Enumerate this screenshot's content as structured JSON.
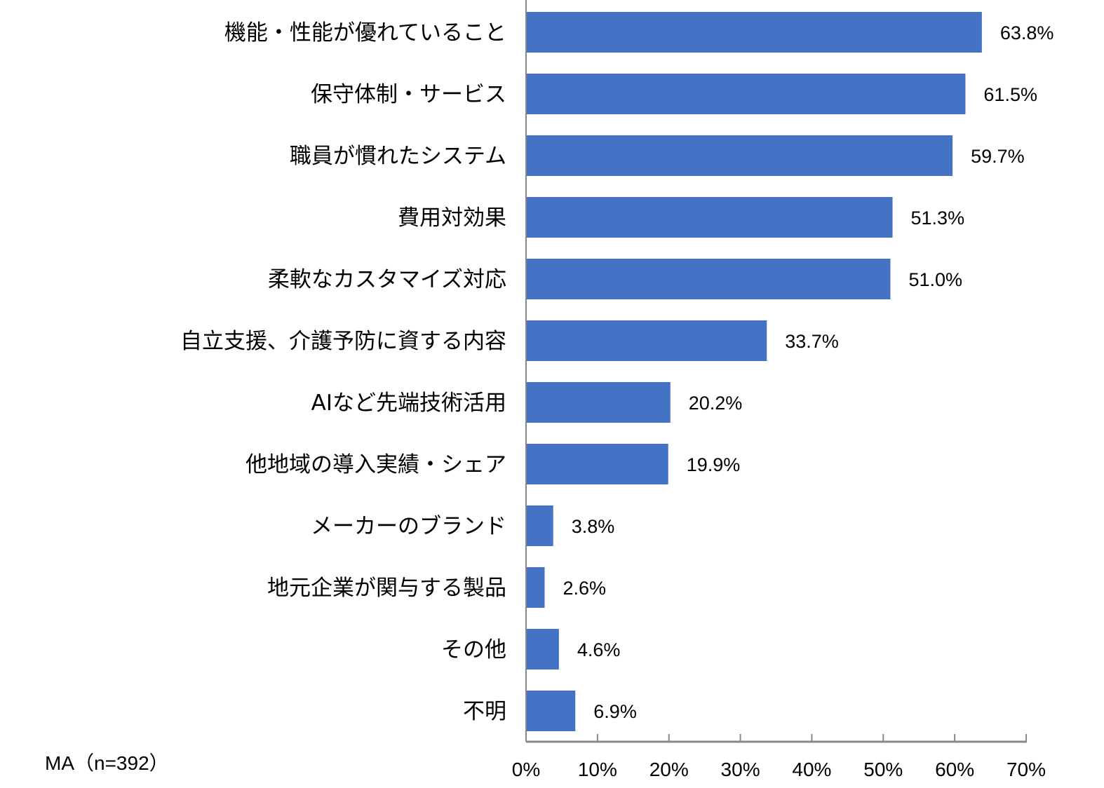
{
  "chart_data": {
    "type": "bar",
    "orientation": "horizontal",
    "categories": [
      "機能・性能が優れていること",
      "保守体制・サービス",
      "職員が慣れたシステム",
      "費用対効果",
      "柔軟なカスタマイズ対応",
      "自立支援、介護予防に資する内容",
      "AIなど先端技術活用",
      "他地域の導入実績・シェア",
      "メーカーのブランド",
      "地元企業が関与する製品",
      "その他",
      "不明"
    ],
    "values": [
      63.8,
      61.5,
      59.7,
      51.3,
      51.0,
      33.7,
      20.2,
      19.9,
      3.8,
      2.6,
      4.6,
      6.9
    ],
    "value_labels": [
      "63.8%",
      "61.5%",
      "59.7%",
      "51.3%",
      "51.0%",
      "33.7%",
      "20.2%",
      "19.9%",
      "3.8%",
      "2.6%",
      "4.6%",
      "6.9%"
    ],
    "xlim": [
      0,
      70
    ],
    "xticks": [
      "0%",
      "10%",
      "20%",
      "30%",
      "40%",
      "50%",
      "60%",
      "70%"
    ],
    "grid": false,
    "bar_color": "#4472C4",
    "note": "MA（n=392）",
    "title": "",
    "xlabel": "",
    "ylabel": ""
  }
}
